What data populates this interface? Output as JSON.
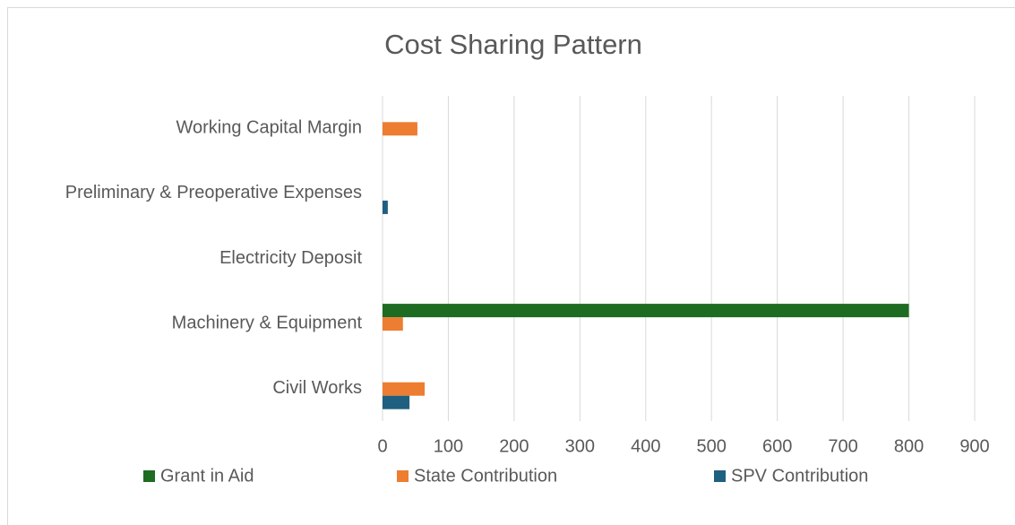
{
  "chart_data": {
    "type": "bar",
    "orientation": "horizontal",
    "title": "Cost Sharing Pattern",
    "categories": [
      "Civil Works",
      "Machinery & Equipment",
      "Electricity Deposit",
      "Preliminary & Preoperative Expenses",
      "Working Capital Margin"
    ],
    "series": [
      {
        "name": "Grant in Aid",
        "color": "#1e6b22",
        "values": [
          0,
          800,
          0,
          0,
          0
        ]
      },
      {
        "name": "State Contribution",
        "color": "#ed7d31",
        "values": [
          64,
          31,
          0,
          0,
          53
        ]
      },
      {
        "name": "SPV Contribution",
        "color": "#1f5f7f",
        "values": [
          41,
          0,
          0,
          8,
          0
        ]
      }
    ],
    "xlim": [
      0,
      900
    ],
    "xticks": [
      0,
      100,
      200,
      300,
      400,
      500,
      600,
      700,
      800,
      900
    ],
    "grid": true,
    "legend": "bottom"
  }
}
